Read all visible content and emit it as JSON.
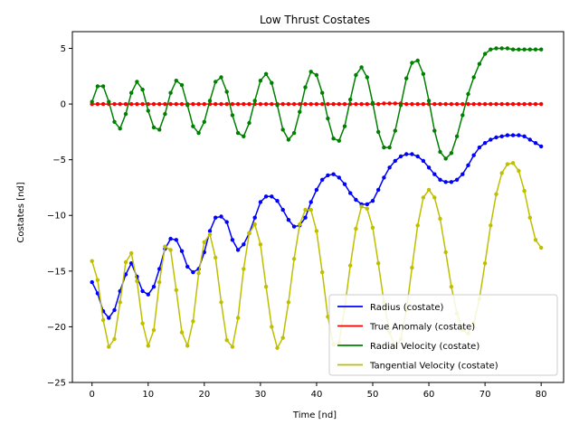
{
  "chart_data": {
    "type": "line",
    "title": "Low Thrust Costates",
    "xlabel": "Time [nd]",
    "ylabel": "Costates [nd]",
    "xlim": [
      -3.5,
      84
    ],
    "ylim": [
      -25,
      6.5
    ],
    "xticks": [
      0,
      10,
      20,
      30,
      40,
      50,
      60,
      70,
      80
    ],
    "yticks": [
      -25,
      -20,
      -15,
      -10,
      -5,
      0,
      5
    ],
    "grid": false,
    "legend_position": "lower-right",
    "markers": "dots",
    "series": [
      {
        "name": "Radius (costate)",
        "color": "#0000ff",
        "x": [
          0,
          1,
          2,
          3,
          4,
          5,
          6,
          7,
          8,
          9,
          10,
          11,
          12,
          13,
          14,
          15,
          16,
          17,
          18,
          19,
          20,
          21,
          22,
          23,
          24,
          25,
          26,
          27,
          28,
          29,
          30,
          31,
          32,
          33,
          34,
          35,
          36,
          37,
          38,
          39,
          40,
          41,
          42,
          43,
          44,
          45,
          46,
          47,
          48,
          49,
          50,
          51,
          52,
          53,
          54,
          55,
          56,
          57,
          58,
          59,
          60,
          61,
          62,
          63,
          64,
          65,
          66,
          67,
          68,
          69,
          70,
          71,
          72,
          73,
          74,
          75,
          76,
          77,
          78,
          79,
          80
        ],
        "y": [
          -16.0,
          -17.0,
          -18.6,
          -19.2,
          -18.5,
          -16.8,
          -15.3,
          -14.3,
          -15.5,
          -16.8,
          -17.1,
          -16.4,
          -14.8,
          -13.0,
          -12.1,
          -12.2,
          -13.2,
          -14.6,
          -15.1,
          -14.8,
          -13.3,
          -11.4,
          -10.2,
          -10.1,
          -10.6,
          -12.2,
          -13.1,
          -12.6,
          -11.6,
          -10.2,
          -8.8,
          -8.3,
          -8.3,
          -8.7,
          -9.5,
          -10.4,
          -11.0,
          -10.9,
          -10.2,
          -8.8,
          -7.7,
          -6.8,
          -6.4,
          -6.3,
          -6.6,
          -7.2,
          -8.0,
          -8.6,
          -9.0,
          -9.0,
          -8.7,
          -7.7,
          -6.6,
          -5.7,
          -5.1,
          -4.7,
          -4.5,
          -4.5,
          -4.7,
          -5.1,
          -5.7,
          -6.3,
          -6.8,
          -7.0,
          -7.0,
          -6.8,
          -6.3,
          -5.5,
          -4.6,
          -3.9,
          -3.5,
          -3.2,
          -3.0,
          -2.9,
          -2.8,
          -2.8,
          -2.8,
          -2.9,
          -3.2,
          -3.5,
          -3.8
        ]
      },
      {
        "name": "True Anomaly (costate)",
        "color": "#ff0000",
        "x": [
          0,
          1,
          2,
          3,
          4,
          5,
          6,
          7,
          8,
          9,
          10,
          11,
          12,
          13,
          14,
          15,
          16,
          17,
          18,
          19,
          20,
          21,
          22,
          23,
          24,
          25,
          26,
          27,
          28,
          29,
          30,
          31,
          32,
          33,
          34,
          35,
          36,
          37,
          38,
          39,
          40,
          41,
          42,
          43,
          44,
          45,
          46,
          47,
          48,
          49,
          50,
          51,
          52,
          53,
          54,
          55,
          56,
          57,
          58,
          59,
          60,
          61,
          62,
          63,
          64,
          65,
          66,
          67,
          68,
          69,
          70,
          71,
          72,
          73,
          74,
          75,
          76,
          77,
          78,
          79,
          80
        ],
        "y": [
          0,
          0,
          0,
          0,
          0,
          0,
          0,
          0,
          0,
          0,
          0,
          0,
          0,
          0,
          0,
          0,
          0,
          0,
          0,
          0,
          0,
          0,
          0,
          0,
          0,
          0,
          0,
          0,
          0,
          0,
          0,
          0,
          0,
          0,
          0,
          0,
          0,
          0,
          0,
          0,
          0,
          0,
          0,
          0,
          0,
          0,
          0,
          0,
          0,
          0,
          0,
          0,
          0.05,
          0.05,
          0.05,
          0.05,
          0,
          0,
          0,
          0,
          0,
          0,
          0,
          0,
          0,
          0,
          0,
          0,
          0,
          0,
          0,
          0,
          0,
          0,
          0,
          0,
          0,
          0,
          0,
          0,
          0
        ]
      },
      {
        "name": "Radial Velocity (costate)",
        "color": "#008000",
        "x": [
          0,
          1,
          2,
          3,
          4,
          5,
          6,
          7,
          8,
          9,
          10,
          11,
          12,
          13,
          14,
          15,
          16,
          17,
          18,
          19,
          20,
          21,
          22,
          23,
          24,
          25,
          26,
          27,
          28,
          29,
          30,
          31,
          32,
          33,
          34,
          35,
          36,
          37,
          38,
          39,
          40,
          41,
          42,
          43,
          44,
          45,
          46,
          47,
          48,
          49,
          50,
          51,
          52,
          53,
          54,
          55,
          56,
          57,
          58,
          59,
          60,
          61,
          62,
          63,
          64,
          65,
          66,
          67,
          68,
          69,
          70,
          71,
          72,
          73,
          74,
          75,
          76,
          77,
          78,
          79,
          80
        ],
        "y": [
          0.2,
          1.6,
          1.6,
          0.2,
          -1.6,
          -2.2,
          -0.9,
          1.0,
          2.0,
          1.3,
          -0.6,
          -2.1,
          -2.3,
          -0.9,
          1.0,
          2.1,
          1.7,
          -0.1,
          -2.0,
          -2.6,
          -1.6,
          0.3,
          2.0,
          2.4,
          1.1,
          -1.0,
          -2.6,
          -2.9,
          -1.7,
          0.3,
          2.1,
          2.7,
          1.9,
          -0.1,
          -2.3,
          -3.2,
          -2.6,
          -0.7,
          1.5,
          2.9,
          2.6,
          1.0,
          -1.3,
          -3.1,
          -3.3,
          -2.0,
          0.4,
          2.6,
          3.3,
          2.4,
          0.1,
          -2.5,
          -3.9,
          -3.9,
          -2.4,
          -0.1,
          2.3,
          3.7,
          3.9,
          2.7,
          0.3,
          -2.4,
          -4.3,
          -4.9,
          -4.4,
          -2.9,
          -1.0,
          0.9,
          2.4,
          3.6,
          4.5,
          4.9,
          5.0,
          5.0,
          5.0,
          4.9,
          4.9,
          4.9,
          4.9,
          4.9,
          4.9
        ]
      },
      {
        "name": "Tangential Velocity (costate)",
        "color": "#bfbf00",
        "x": [
          0,
          1,
          2,
          3,
          4,
          5,
          6,
          7,
          8,
          9,
          10,
          11,
          12,
          13,
          14,
          15,
          16,
          17,
          18,
          19,
          20,
          21,
          22,
          23,
          24,
          25,
          26,
          27,
          28,
          29,
          30,
          31,
          32,
          33,
          34,
          35,
          36,
          37,
          38,
          39,
          40,
          41,
          42,
          43,
          44,
          45,
          46,
          47,
          48,
          49,
          50,
          51,
          52,
          53,
          54,
          55,
          56,
          57,
          58,
          59,
          60,
          61,
          62,
          63,
          64,
          65,
          66,
          67,
          68,
          69,
          70,
          71,
          72,
          73,
          74,
          75,
          76,
          77,
          78,
          79,
          80
        ],
        "y": [
          -14.1,
          -15.8,
          -19.4,
          -21.8,
          -21.1,
          -17.8,
          -14.2,
          -13.4,
          -15.9,
          -19.7,
          -21.7,
          -20.3,
          -16.0,
          -12.8,
          -13.1,
          -16.7,
          -20.5,
          -21.7,
          -19.5,
          -15.2,
          -12.4,
          -11.7,
          -13.8,
          -17.8,
          -21.2,
          -21.8,
          -19.2,
          -14.8,
          -11.6,
          -10.8,
          -12.6,
          -16.4,
          -20.0,
          -21.9,
          -21.0,
          -17.8,
          -13.9,
          -10.8,
          -9.5,
          -9.5,
          -11.4,
          -15.1,
          -19.1,
          -21.6,
          -21.4,
          -18.3,
          -14.5,
          -11.2,
          -9.2,
          -9.4,
          -11.1,
          -14.3,
          -17.8,
          -20.5,
          -21.8,
          -21.1,
          -18.5,
          -14.7,
          -10.9,
          -8.4,
          -7.7,
          -8.4,
          -10.3,
          -13.3,
          -16.4,
          -18.8,
          -20.3,
          -20.6,
          -19.7,
          -17.5,
          -14.3,
          -10.9,
          -8.1,
          -6.2,
          -5.4,
          -5.3,
          -6.0,
          -7.8,
          -10.2,
          -12.2,
          -12.9
        ]
      }
    ]
  }
}
